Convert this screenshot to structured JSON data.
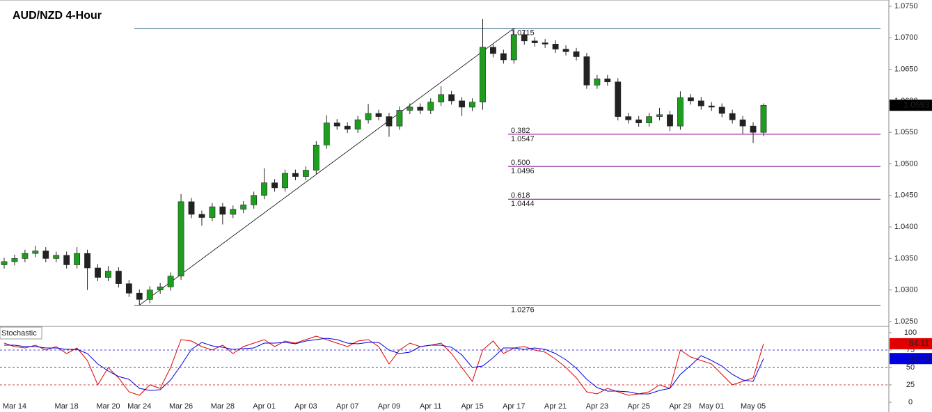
{
  "chart_data": [
    {
      "type": "candlestick",
      "title": "AUD/NZD 4-Hour",
      "categories": [
        null,
        "Mar 14",
        null,
        null,
        null,
        null,
        "Mar 18",
        null,
        null,
        null,
        "Mar 20",
        null,
        null,
        "Mar 24",
        null,
        null,
        null,
        "Mar 26",
        null,
        null,
        null,
        "Mar 28",
        null,
        null,
        null,
        "Apr 01",
        null,
        null,
        null,
        "Apr 03",
        null,
        null,
        null,
        "Apr 07",
        null,
        null,
        null,
        "Apr 09",
        null,
        null,
        null,
        "Apr 11",
        null,
        null,
        null,
        "Apr 15",
        null,
        null,
        null,
        "Apr 17",
        null,
        null,
        null,
        "Apr 21",
        null,
        null,
        null,
        "Apr 23",
        null,
        null,
        null,
        "Apr 25",
        null,
        null,
        null,
        "Apr 29",
        null,
        null,
        "May 01",
        null,
        null,
        null,
        "May 05",
        null
      ],
      "open": [
        1.034,
        1.0345,
        1.035,
        1.0358,
        1.0362,
        1.035,
        1.0355,
        1.034,
        1.0358,
        1.0335,
        1.032,
        1.033,
        1.031,
        1.0295,
        1.0285,
        1.03,
        1.0305,
        1.0322,
        1.044,
        1.042,
        1.0415,
        1.0432,
        1.042,
        1.0428,
        1.0435,
        1.045,
        1.047,
        1.0462,
        1.0485,
        1.048,
        1.049,
        1.053,
        1.0565,
        1.056,
        1.0555,
        1.057,
        1.058,
        1.0575,
        1.056,
        1.0585,
        1.059,
        1.0585,
        1.0598,
        1.061,
        1.06,
        1.059,
        1.0598,
        1.0685,
        1.0675,
        1.0665,
        1.0705,
        1.0695,
        1.0692,
        1.069,
        1.0682,
        1.0678,
        1.067,
        1.0625,
        1.0635,
        1.063,
        1.0575,
        1.057,
        1.0565,
        1.0575,
        1.0578,
        1.056,
        1.0605,
        1.06,
        1.0592,
        1.059,
        1.058,
        1.057,
        1.056,
        1.055
      ],
      "high": [
        1.0351,
        1.0356,
        1.0364,
        1.037,
        1.0368,
        1.0361,
        1.0361,
        1.0368,
        1.0364,
        1.0341,
        1.0338,
        1.0336,
        1.0316,
        1.0301,
        1.0306,
        1.0311,
        1.0328,
        1.0452,
        1.0446,
        1.0426,
        1.0438,
        1.0438,
        1.0434,
        1.0441,
        1.0456,
        1.0493,
        1.0476,
        1.0491,
        1.0491,
        1.0496,
        1.0536,
        1.0577,
        1.0571,
        1.0566,
        1.0576,
        1.0595,
        1.0586,
        1.0581,
        1.0591,
        1.0596,
        1.0596,
        1.0604,
        1.0623,
        1.0616,
        1.0606,
        1.0604,
        1.073,
        1.0691,
        1.0681,
        1.0715,
        1.0711,
        1.0701,
        1.0698,
        1.0696,
        1.0688,
        1.0684,
        1.0676,
        1.0641,
        1.0641,
        1.0636,
        1.0581,
        1.0576,
        1.0581,
        1.0589,
        1.0584,
        1.0615,
        1.0611,
        1.0606,
        1.0598,
        1.0596,
        1.0586,
        1.0576,
        1.0566,
        1.0596
      ],
      "low": [
        1.0334,
        1.0339,
        1.0344,
        1.0352,
        1.0344,
        1.0344,
        1.0334,
        1.0334,
        1.03,
        1.0314,
        1.0314,
        1.0304,
        1.0289,
        1.0276,
        1.0279,
        1.0294,
        1.0299,
        1.0316,
        1.0414,
        1.0402,
        1.0409,
        1.0404,
        1.0414,
        1.0422,
        1.0429,
        1.0444,
        1.0456,
        1.0456,
        1.0474,
        1.0474,
        1.0484,
        1.0524,
        1.0554,
        1.0549,
        1.0549,
        1.0564,
        1.0569,
        1.0543,
        1.0554,
        1.0579,
        1.0579,
        1.0579,
        1.0592,
        1.0594,
        1.0576,
        1.0584,
        1.0586,
        1.0669,
        1.0659,
        1.0659,
        1.0689,
        1.0686,
        1.0684,
        1.0676,
        1.0672,
        1.0664,
        1.0619,
        1.0619,
        1.0624,
        1.0569,
        1.0564,
        1.0559,
        1.0559,
        1.0569,
        1.0552,
        1.0554,
        1.0594,
        1.0586,
        1.0584,
        1.0574,
        1.0564,
        1.0548,
        1.0533,
        1.0544
      ],
      "close": [
        1.0345,
        1.035,
        1.0358,
        1.0362,
        1.035,
        1.0355,
        1.034,
        1.0358,
        1.0335,
        1.032,
        1.033,
        1.031,
        1.0295,
        1.0285,
        1.03,
        1.0305,
        1.0322,
        1.044,
        1.042,
        1.0415,
        1.0432,
        1.042,
        1.0428,
        1.0435,
        1.045,
        1.047,
        1.0462,
        1.0485,
        1.048,
        1.049,
        1.053,
        1.0565,
        1.056,
        1.0555,
        1.057,
        1.058,
        1.0575,
        1.056,
        1.0585,
        1.059,
        1.0585,
        1.0598,
        1.061,
        1.06,
        1.059,
        1.0598,
        1.0685,
        1.0675,
        1.0665,
        1.0705,
        1.0695,
        1.0692,
        1.069,
        1.0682,
        1.0678,
        1.067,
        1.0625,
        1.0635,
        1.063,
        1.0575,
        1.057,
        1.0565,
        1.0575,
        1.0578,
        1.056,
        1.0605,
        1.06,
        1.0592,
        1.059,
        1.058,
        1.057,
        1.056,
        1.055,
        1.0593
      ],
      "up_color": "#1e9e1e",
      "down_color": "#222222",
      "ylim": [
        1.025,
        1.075
      ],
      "yticks": [
        {
          "value": 1.075,
          "label": "1.0750"
        },
        {
          "value": 1.07,
          "label": "1.0700"
        },
        {
          "value": 1.065,
          "label": "1.0650"
        },
        {
          "value": 1.06,
          "label": "1.0600"
        },
        {
          "value": 1.055,
          "label": "1.0550"
        },
        {
          "value": 1.05,
          "label": "1.0500"
        },
        {
          "value": 1.045,
          "label": "1.0450"
        },
        {
          "value": 1.04,
          "label": "1.0400"
        },
        {
          "value": 1.035,
          "label": "1.0350"
        },
        {
          "value": 1.03,
          "label": "1.0300"
        },
        {
          "value": 1.025,
          "label": "1.0250"
        }
      ],
      "swing_lines": [
        {
          "value": 1.0715,
          "color": "#1f6080"
        },
        {
          "value": 1.0276,
          "color": "#1f6080"
        }
      ],
      "fib_levels": [
        {
          "ratio": "0.382",
          "value": 1.0547
        },
        {
          "ratio": "0.500",
          "value": 1.0496
        },
        {
          "ratio": "0.618",
          "value": 1.0444
        }
      ],
      "fib_color": "#800080",
      "trendline": {
        "start": 1.0276,
        "end": 1.0715
      },
      "last_price": 1.0593
    },
    {
      "type": "line",
      "title": "Stochastic",
      "series": [
        {
          "color": "#e00000",
          "values": [
            85,
            80,
            78,
            82,
            75,
            80,
            70,
            78,
            60,
            25,
            50,
            35,
            15,
            10,
            25,
            20,
            50,
            90,
            88,
            80,
            75,
            82,
            70,
            80,
            85,
            90,
            80,
            88,
            85,
            90,
            95,
            90,
            85,
            80,
            88,
            90,
            80,
            55,
            75,
            85,
            80,
            82,
            85,
            70,
            50,
            30,
            75,
            88,
            70,
            78,
            80,
            75,
            72,
            62,
            50,
            35,
            15,
            12,
            20,
            15,
            10,
            12,
            15,
            25,
            20,
            75,
            65,
            60,
            55,
            40,
            25,
            30,
            35,
            84.11
          ]
        },
        {
          "color": "#0000e0",
          "values": [
            82,
            82,
            80,
            80,
            78,
            78,
            76,
            76,
            70,
            55,
            45,
            37,
            33,
            20,
            17,
            18,
            32,
            53,
            76,
            86,
            81,
            79,
            76,
            77,
            78,
            85,
            85,
            86,
            84,
            88,
            90,
            92,
            90,
            85,
            84,
            86,
            86,
            75,
            70,
            72,
            80,
            82,
            82,
            79,
            68,
            50,
            52,
            64,
            78,
            78,
            76,
            78,
            76,
            70,
            61,
            49,
            33,
            21,
            16,
            16,
            15,
            12,
            12,
            17,
            20,
            40,
            53,
            67,
            60,
            52,
            40,
            32,
            30,
            62.78
          ]
        }
      ],
      "ylim": [
        0,
        100
      ],
      "yticks": [
        100,
        75,
        50,
        25,
        0
      ],
      "level_lines": [
        {
          "value": 75,
          "color": "#0000cc"
        },
        {
          "value": 50,
          "color": "#0000cc"
        },
        {
          "value": 25,
          "color": "#cc0000"
        }
      ]
    }
  ]
}
